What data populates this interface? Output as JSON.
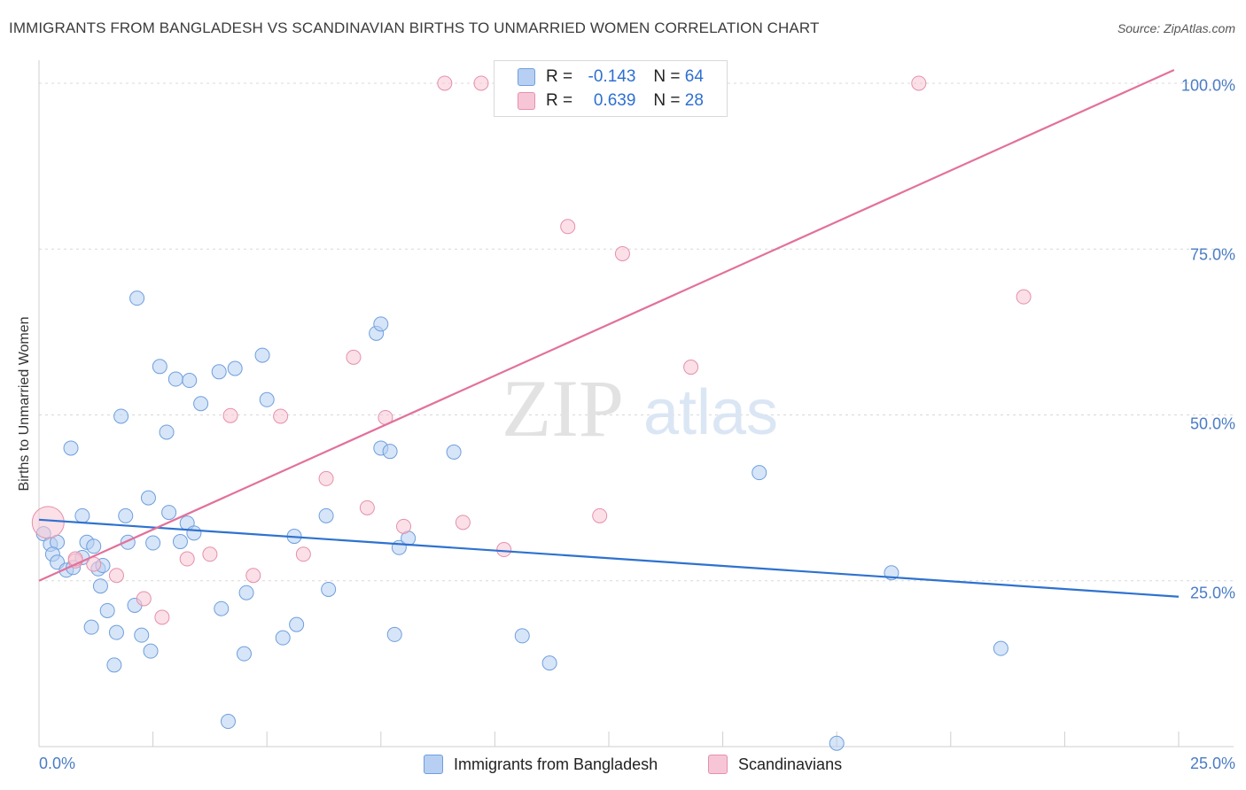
{
  "title": "IMMIGRANTS FROM BANGLADESH VS SCANDINAVIAN BIRTHS TO UNMARRIED WOMEN CORRELATION CHART",
  "source": "Source: ZipAtlas.com",
  "watermark": {
    "zip": "ZIP",
    "atlas": "atlas"
  },
  "colors": {
    "blue_fill": "#b7cff2",
    "blue_stroke": "#6e9fdd",
    "blue_line": "#2e72cf",
    "pink_fill": "#f7c6d6",
    "pink_stroke": "#e68fab",
    "pink_line": "#e2719b",
    "tick_text": "#4a7cc4",
    "grid": "#d8d8d8"
  },
  "legend": {
    "rows": [
      {
        "r_label": "R =",
        "r_value": "-0.143",
        "n_label": "N =",
        "n_value": "64"
      },
      {
        "r_label": "R =",
        "r_value": "0.639",
        "n_label": "N =",
        "n_value": "28"
      }
    ]
  },
  "chart_data": {
    "type": "scatter",
    "title": "IMMIGRANTS FROM BANGLADESH VS SCANDINAVIAN BIRTHS TO UNMARRIED WOMEN CORRELATION CHART",
    "xlabel": "",
    "ylabel": "Births to Unmarried Women",
    "xlim": [
      0,
      25
    ],
    "ylim": [
      0,
      102
    ],
    "x_tick_labels": [
      "0.0%",
      "25.0%"
    ],
    "y_ticks": [
      25,
      50,
      75,
      100
    ],
    "y_tick_labels": [
      "25.0%",
      "50.0%",
      "75.0%",
      "100.0%"
    ],
    "grid": true,
    "series": [
      {
        "name": "Immigrants from Bangladesh",
        "r": -0.143,
        "n": 64,
        "trend": [
          [
            0,
            34.2
          ],
          [
            25,
            22.6
          ]
        ],
        "points": [
          [
            0.1,
            32.1
          ],
          [
            0.25,
            30.5
          ],
          [
            0.4,
            30.8
          ],
          [
            0.3,
            29.0
          ],
          [
            0.4,
            27.8
          ],
          [
            0.6,
            26.6
          ],
          [
            0.75,
            27.0
          ],
          [
            0.95,
            28.5
          ],
          [
            0.7,
            45.0
          ],
          [
            0.95,
            34.8
          ],
          [
            1.05,
            30.8
          ],
          [
            1.2,
            30.2
          ],
          [
            1.3,
            26.8
          ],
          [
            1.4,
            27.3
          ],
          [
            1.35,
            24.2
          ],
          [
            1.5,
            20.5
          ],
          [
            1.15,
            18.0
          ],
          [
            1.7,
            17.2
          ],
          [
            1.65,
            12.3
          ],
          [
            1.8,
            49.8
          ],
          [
            1.9,
            34.8
          ],
          [
            1.95,
            30.8
          ],
          [
            2.15,
            67.6
          ],
          [
            2.1,
            21.3
          ],
          [
            2.25,
            16.8
          ],
          [
            2.4,
            37.5
          ],
          [
            2.45,
            14.4
          ],
          [
            2.5,
            30.7
          ],
          [
            2.65,
            57.3
          ],
          [
            2.8,
            47.4
          ],
          [
            2.85,
            35.3
          ],
          [
            3.0,
            55.4
          ],
          [
            3.1,
            30.9
          ],
          [
            3.25,
            33.7
          ],
          [
            3.3,
            55.2
          ],
          [
            3.4,
            32.2
          ],
          [
            3.55,
            51.7
          ],
          [
            3.95,
            56.5
          ],
          [
            4.0,
            20.8
          ],
          [
            4.15,
            3.8
          ],
          [
            4.3,
            57.0
          ],
          [
            4.5,
            14.0
          ],
          [
            4.55,
            23.2
          ],
          [
            5.0,
            52.3
          ],
          [
            5.35,
            16.4
          ],
          [
            5.6,
            31.7
          ],
          [
            5.65,
            18.4
          ],
          [
            6.3,
            34.8
          ],
          [
            6.35,
            23.7
          ],
          [
            7.5,
            45.0
          ],
          [
            7.4,
            62.3
          ],
          [
            7.5,
            63.7
          ],
          [
            7.7,
            44.5
          ],
          [
            7.8,
            16.9
          ],
          [
            7.9,
            30.0
          ],
          [
            8.1,
            31.4
          ],
          [
            9.1,
            44.4
          ],
          [
            10.6,
            16.7
          ],
          [
            11.2,
            12.6
          ],
          [
            15.8,
            41.3
          ],
          [
            17.5,
            0.5
          ],
          [
            18.7,
            26.2
          ],
          [
            21.1,
            14.8
          ],
          [
            4.9,
            59.0
          ]
        ]
      },
      {
        "name": "Scandinavians",
        "r": 0.639,
        "n": 28,
        "trend": [
          [
            0,
            25.0
          ],
          [
            24.9,
            102.0
          ]
        ],
        "points": [
          [
            0.2,
            33.8
          ],
          [
            0.8,
            28.0
          ],
          [
            1.2,
            27.5
          ],
          [
            1.7,
            25.8
          ],
          [
            2.3,
            22.3
          ],
          [
            2.7,
            19.5
          ],
          [
            3.25,
            28.3
          ],
          [
            3.75,
            29.0
          ],
          [
            4.2,
            49.9
          ],
          [
            4.7,
            25.8
          ],
          [
            5.3,
            49.8
          ],
          [
            5.8,
            29.0
          ],
          [
            6.3,
            40.4
          ],
          [
            6.9,
            58.7
          ],
          [
            7.2,
            36.0
          ],
          [
            7.6,
            49.6
          ],
          [
            8.0,
            33.2
          ],
          [
            8.9,
            100.0
          ],
          [
            9.3,
            33.8
          ],
          [
            9.7,
            100.0
          ],
          [
            10.2,
            29.7
          ],
          [
            11.6,
            78.4
          ],
          [
            12.3,
            34.8
          ],
          [
            12.8,
            74.3
          ],
          [
            14.3,
            57.2
          ],
          [
            19.3,
            100.0
          ],
          [
            21.6,
            67.8
          ],
          [
            0.8,
            28.3
          ]
        ]
      }
    ]
  }
}
